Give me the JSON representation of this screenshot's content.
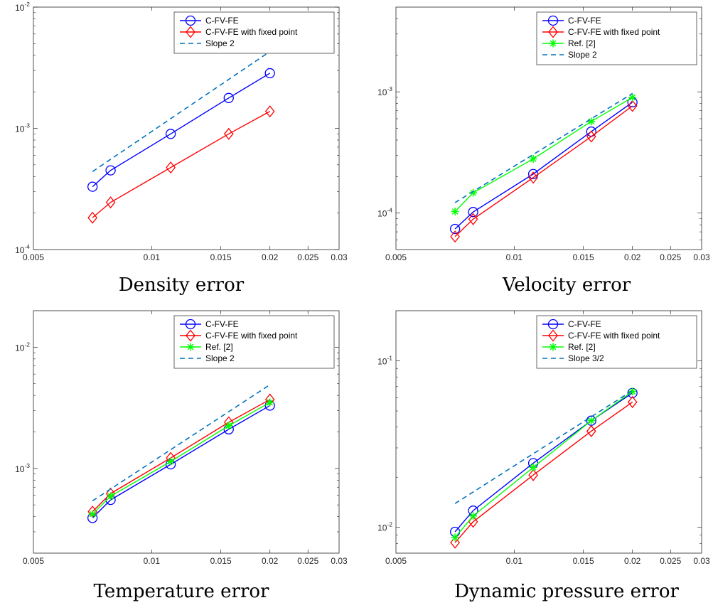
{
  "chart_data": [
    {
      "type": "line",
      "xscale": "log",
      "yscale": "log",
      "xlim": [
        0.005,
        0.03
      ],
      "ylim": [
        0.0001,
        0.01
      ],
      "xticks": [
        0.005,
        0.01,
        0.015,
        0.02,
        0.025,
        0.03
      ],
      "xtick_labels": [
        "0.005",
        "0.01",
        "0.015",
        "0.02",
        "0.025",
        "0.03"
      ],
      "yticks": [
        {
          "base": "10",
          "exp": "-4",
          "value": 0.0001
        },
        {
          "base": "10",
          "exp": "-3",
          "value": 0.001
        },
        {
          "base": "10",
          "exp": "-2",
          "value": 0.01
        }
      ],
      "caption": "Density error",
      "legend_position": "top-right",
      "series": [
        {
          "name": "C-FV-FE",
          "color": "#0000ff",
          "marker": "circle",
          "x": [
            0.00707,
            0.00786,
            0.01118,
            0.01571,
            0.02
          ],
          "y": [
            0.00033,
            0.00045,
            0.0009,
            0.00178,
            0.00285
          ]
        },
        {
          "name": "C-FV-FE with fixed point",
          "color": "#ff0000",
          "marker": "diamond",
          "x": [
            0.00707,
            0.00786,
            0.01118,
            0.01571,
            0.02
          ],
          "y": [
            0.000183,
            0.000245,
            0.000475,
            0.0009,
            0.00138
          ]
        },
        {
          "name": "Slope 2",
          "color": "#0072bd",
          "marker": "none",
          "dashed": true,
          "x": [
            0.00707,
            0.02
          ],
          "y": [
            0.00044,
            0.0043
          ]
        }
      ]
    },
    {
      "type": "line",
      "xscale": "log",
      "yscale": "log",
      "xlim": [
        0.005,
        0.03
      ],
      "ylim": [
        5e-05,
        0.005
      ],
      "xticks": [
        0.005,
        0.01,
        0.015,
        0.02,
        0.025,
        0.03
      ],
      "xtick_labels": [
        "0.005",
        "0.01",
        "0.015",
        "0.02",
        "0.025",
        "0.03"
      ],
      "yticks": [
        {
          "base": "10",
          "exp": "-4",
          "value": 0.0001
        },
        {
          "base": "10",
          "exp": "-3",
          "value": 0.001
        }
      ],
      "caption": "Velocity error",
      "legend_position": "top-right",
      "series": [
        {
          "name": "C-FV-FE",
          "color": "#0000ff",
          "marker": "circle",
          "x": [
            0.00707,
            0.00786,
            0.01118,
            0.01571,
            0.02
          ],
          "y": [
            7.4e-05,
            0.000102,
            0.00021,
            0.00047,
            0.00082
          ]
        },
        {
          "name": "C-FV-FE with fixed point",
          "color": "#ff0000",
          "marker": "diamond",
          "x": [
            0.00707,
            0.00786,
            0.01118,
            0.01571,
            0.02
          ],
          "y": [
            6.4e-05,
            8.9e-05,
            0.000196,
            0.000428,
            0.000765
          ]
        },
        {
          "name": "Ref. [2]",
          "color": "#00ff00",
          "marker": "asterisk",
          "x": [
            0.00707,
            0.00786,
            0.01118,
            0.01571,
            0.02
          ],
          "y": [
            0.000103,
            0.000147,
            0.00028,
            0.00057,
            0.0009
          ]
        },
        {
          "name": "Slope 2",
          "color": "#0072bd",
          "marker": "none",
          "dashed": true,
          "x": [
            0.00707,
            0.02
          ],
          "y": [
            0.000122,
            0.00097
          ]
        }
      ]
    },
    {
      "type": "line",
      "xscale": "log",
      "yscale": "log",
      "xlim": [
        0.005,
        0.03
      ],
      "ylim": [
        0.0002,
        0.02
      ],
      "xticks": [
        0.005,
        0.01,
        0.015,
        0.02,
        0.025,
        0.03
      ],
      "xtick_labels": [
        "0.005",
        "0.01",
        "0.015",
        "0.02",
        "0.025",
        "0.03"
      ],
      "yticks": [
        {
          "base": "10",
          "exp": "-3",
          "value": 0.001
        },
        {
          "base": "10",
          "exp": "-2",
          "value": 0.01
        }
      ],
      "caption": "Temperature error",
      "legend_position": "top-right",
      "series": [
        {
          "name": "C-FV-FE",
          "color": "#0000ff",
          "marker": "circle",
          "x": [
            0.00707,
            0.00786,
            0.01118,
            0.01571,
            0.02
          ],
          "y": [
            0.00039,
            0.00055,
            0.00108,
            0.0021,
            0.0033
          ]
        },
        {
          "name": "C-FV-FE with fixed point",
          "color": "#ff0000",
          "marker": "diamond",
          "x": [
            0.00707,
            0.00786,
            0.01118,
            0.01571,
            0.02
          ],
          "y": [
            0.00044,
            0.00062,
            0.00122,
            0.0024,
            0.0037
          ]
        },
        {
          "name": "Ref. [2]",
          "color": "#00ff00",
          "marker": "asterisk",
          "x": [
            0.00707,
            0.00786,
            0.01118,
            0.01571,
            0.02
          ],
          "y": [
            0.00042,
            0.00059,
            0.00114,
            0.00225,
            0.0035
          ]
        },
        {
          "name": "Slope 2",
          "color": "#0072bd",
          "marker": "none",
          "dashed": true,
          "x": [
            0.00707,
            0.02
          ],
          "y": [
            0.00054,
            0.0049
          ]
        }
      ]
    },
    {
      "type": "line",
      "xscale": "log",
      "yscale": "log",
      "xlim": [
        0.005,
        0.03
      ],
      "ylim": [
        0.007,
        0.2
      ],
      "xticks": [
        0.005,
        0.01,
        0.015,
        0.02,
        0.025,
        0.03
      ],
      "xtick_labels": [
        "0.005",
        "0.01",
        "0.015",
        "0.02",
        "0.025",
        "0.03"
      ],
      "yticks": [
        {
          "base": "10",
          "exp": "-2",
          "value": 0.01
        },
        {
          "base": "10",
          "exp": "-1",
          "value": 0.1
        }
      ],
      "caption": "Dynamic pressure error",
      "legend_position": "top-right",
      "series": [
        {
          "name": "C-FV-FE",
          "color": "#0000ff",
          "marker": "circle",
          "x": [
            0.00707,
            0.00786,
            0.01118,
            0.01571,
            0.02
          ],
          "y": [
            0.0094,
            0.0126,
            0.0243,
            0.0437,
            0.0641
          ]
        },
        {
          "name": "C-FV-FE with fixed point",
          "color": "#ff0000",
          "marker": "diamond",
          "x": [
            0.00707,
            0.00786,
            0.01118,
            0.01571,
            0.02
          ],
          "y": [
            0.0081,
            0.0108,
            0.0206,
            0.0378,
            0.0565
          ]
        },
        {
          "name": "Ref. [2]",
          "color": "#00ff00",
          "marker": "asterisk",
          "x": [
            0.00707,
            0.00786,
            0.01118,
            0.01571,
            0.02
          ],
          "y": [
            0.0087,
            0.0117,
            0.0229,
            0.0437,
            0.0655
          ]
        },
        {
          "name": "Slope 3/2",
          "color": "#0072bd",
          "marker": "none",
          "dashed": true,
          "x": [
            0.00707,
            0.02
          ],
          "y": [
            0.0139,
            0.0663
          ]
        }
      ]
    }
  ]
}
